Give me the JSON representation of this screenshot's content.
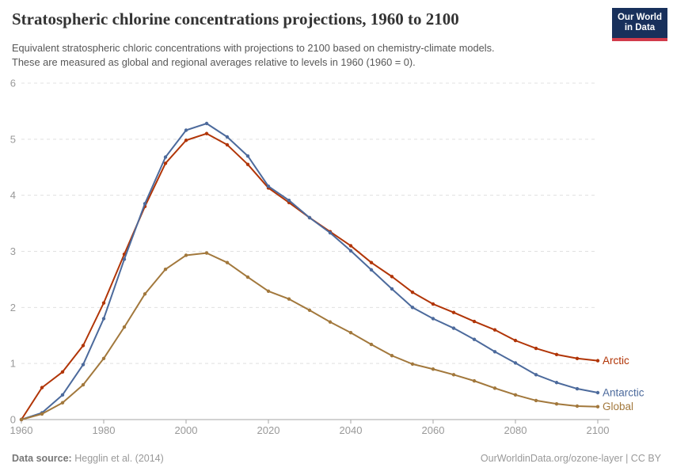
{
  "header": {
    "title": "Stratospheric chlorine concentrations projections, 1960 to 2100",
    "subtitle_line1": "Equivalent stratospheric chloric concentrations with projections to 2100 based on chemistry-climate models.",
    "subtitle_line2": "These are measured as global and regional averages relative to levels in 1960 (1960 = 0).",
    "logo": {
      "line1": "Our World",
      "line2": "in Data",
      "bg_color": "#18305b",
      "stripe_color": "#d13b4b"
    }
  },
  "chart_data": {
    "type": "line",
    "title": "Stratospheric chlorine concentrations projections, 1960 to 2100",
    "x": [
      1960,
      1965,
      1970,
      1975,
      1980,
      1985,
      1990,
      1995,
      2000,
      2005,
      2010,
      2015,
      2020,
      2025,
      2030,
      2035,
      2040,
      2045,
      2050,
      2055,
      2060,
      2065,
      2070,
      2075,
      2080,
      2085,
      2090,
      2095,
      2100
    ],
    "series": [
      {
        "name": "Arctic",
        "color": "#B13507",
        "values": [
          0,
          0.57,
          0.85,
          1.32,
          2.08,
          2.95,
          3.8,
          4.57,
          4.98,
          5.1,
          4.9,
          4.55,
          4.13,
          3.87,
          3.6,
          3.35,
          3.1,
          2.8,
          2.55,
          2.27,
          2.06,
          1.91,
          1.75,
          1.6,
          1.41,
          1.27,
          1.16,
          1.09,
          1.05
        ]
      },
      {
        "name": "Antarctic",
        "color": "#4C6A9C",
        "values": [
          0,
          0.12,
          0.44,
          0.98,
          1.8,
          2.86,
          3.85,
          4.68,
          5.16,
          5.28,
          5.04,
          4.7,
          4.16,
          3.91,
          3.6,
          3.33,
          3.01,
          2.67,
          2.33,
          2.0,
          1.8,
          1.63,
          1.43,
          1.21,
          1.01,
          0.8,
          0.66,
          0.55,
          0.48
        ]
      },
      {
        "name": "Global",
        "color": "#A2783C",
        "values": [
          0,
          0.1,
          0.3,
          0.62,
          1.09,
          1.65,
          2.24,
          2.68,
          2.93,
          2.97,
          2.8,
          2.54,
          2.29,
          2.15,
          1.95,
          1.74,
          1.55,
          1.34,
          1.14,
          0.99,
          0.9,
          0.8,
          0.69,
          0.56,
          0.44,
          0.34,
          0.28,
          0.24,
          0.23
        ]
      }
    ],
    "xlabel": "",
    "ylabel": "",
    "xlim": [
      1960,
      2100
    ],
    "ylim": [
      0,
      6
    ],
    "x_ticks": [
      1960,
      1980,
      2000,
      2020,
      2040,
      2060,
      2080,
      2100
    ],
    "y_ticks": [
      0,
      1,
      2,
      3,
      4,
      5,
      6
    ],
    "grid": "horizontal-dashed",
    "legend_position": "line-end-labels",
    "colors": {
      "gridline": "#e0e0e0",
      "axis": "#a5a5a5",
      "tick_label": "#999999"
    }
  },
  "footer": {
    "source_label": "Data source:",
    "source_value": "Hegglin et al. (2014)",
    "rights": "OurWorldinData.org/ozone-layer | CC BY"
  }
}
